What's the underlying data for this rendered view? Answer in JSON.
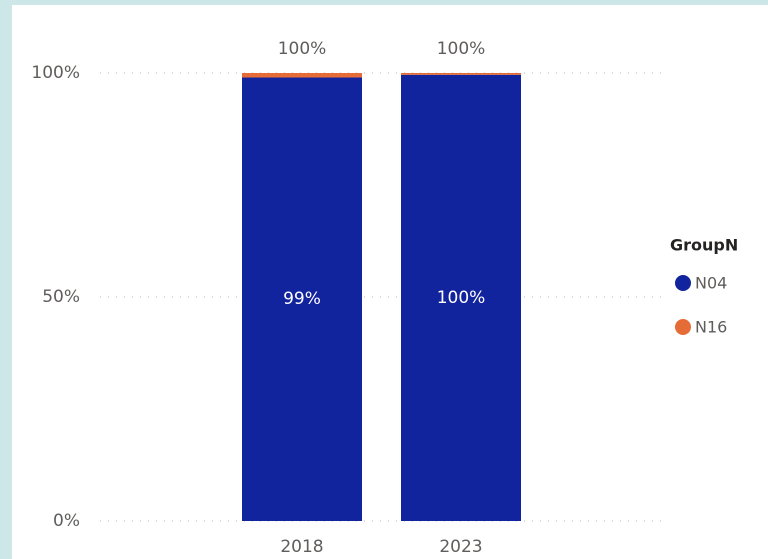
{
  "chart_data": {
    "type": "stacked_bar_100",
    "categories": [
      "2018",
      "2023"
    ],
    "series": [
      {
        "name": "N04",
        "color": "#12239E",
        "values": [
          99,
          99.6
        ],
        "value_labels": [
          "99%",
          "100%"
        ]
      },
      {
        "name": "N16",
        "color": "#E66C37",
        "values": [
          1,
          0.4
        ]
      }
    ],
    "totals": [
      100,
      100
    ],
    "total_labels": [
      "100%",
      "100%"
    ],
    "legend_title": "GroupN",
    "legend": "right",
    "ylim": [
      0,
      100
    ],
    "yticks": [
      {
        "value": 0,
        "label": "0%"
      },
      {
        "value": 50,
        "label": "50%"
      },
      {
        "value": 100,
        "label": "100%"
      }
    ],
    "grid": true
  }
}
